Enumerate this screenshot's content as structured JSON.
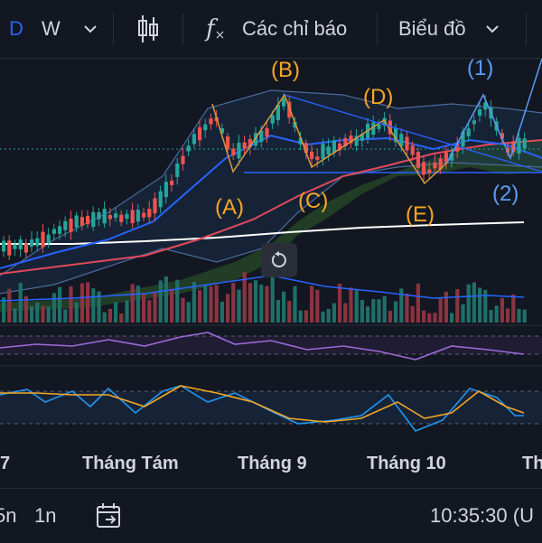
{
  "toolbar": {
    "interval_d": "D",
    "interval_w": "W",
    "indicators_label": "Các chỉ báo",
    "chart_type_label": "Biểu đồ"
  },
  "chart": {
    "wave_labels": {
      "a": "(A)",
      "b": "(B)",
      "c": "(C)",
      "d": "(D)",
      "e": "(E)",
      "w1": "(1)",
      "w2": "(2)"
    },
    "colors": {
      "background": "#131722",
      "up": "#26a69a",
      "down": "#ef5350",
      "wave_orange": "#f5a623",
      "wave_blue": "#5b9cf5",
      "ma_long": "#ffffff",
      "ma_mid": "#e04a5a",
      "ma_short": "#2962ff"
    }
  },
  "time_axis": {
    "labels": [
      "7",
      "Tháng Tám",
      "Tháng 9",
      "Tháng 10",
      "Th"
    ]
  },
  "bottombar": {
    "range_5n": "5n",
    "range_1n": "1n",
    "clock": "10:35:30 (U"
  }
}
